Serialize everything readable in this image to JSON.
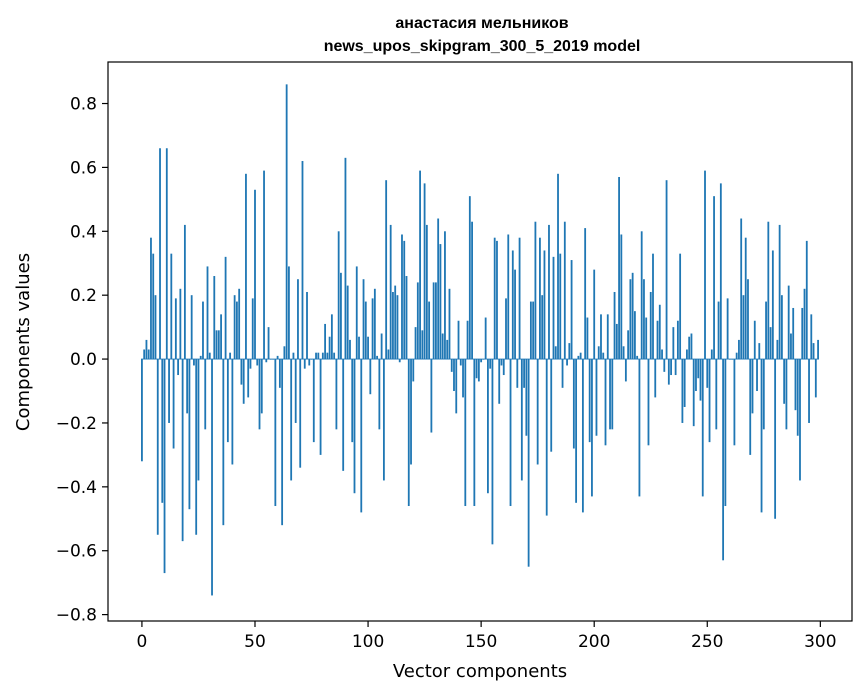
{
  "chart_data": {
    "type": "bar",
    "title": "анастасия мельников",
    "subtitle": "news_upos_skipgram_300_5_2019 model",
    "xlabel": "Vector components",
    "ylabel": "Components values",
    "xlim": [
      -15,
      314
    ],
    "ylim": [
      -0.82,
      0.93
    ],
    "xticks": [
      0,
      50,
      100,
      150,
      200,
      250,
      300
    ],
    "yticks": [
      -0.8,
      -0.6,
      -0.4,
      -0.2,
      0.0,
      0.2,
      0.4,
      0.6,
      0.8
    ],
    "ytick_labels": [
      "−0.8",
      "−0.6",
      "−0.4",
      "−0.2",
      "0.0",
      "0.2",
      "0.4",
      "0.6",
      "0.8"
    ],
    "grid": false,
    "color": "#1f77b4",
    "x_start": 0,
    "values": [
      -0.32,
      0.03,
      0.06,
      0.03,
      0.38,
      0.33,
      0.2,
      -0.55,
      0.66,
      -0.45,
      -0.67,
      0.66,
      -0.2,
      0.33,
      -0.28,
      0.19,
      -0.05,
      0.22,
      -0.57,
      0.42,
      -0.17,
      -0.47,
      0.2,
      -0.02,
      -0.55,
      -0.38,
      0.01,
      0.18,
      -0.22,
      0.29,
      0.02,
      -0.74,
      0.26,
      0.09,
      0.09,
      0.14,
      -0.52,
      0.32,
      -0.26,
      0.02,
      -0.33,
      0.2,
      0.18,
      0.22,
      -0.08,
      -0.14,
      0.58,
      -0.12,
      -0.03,
      0.19,
      0.53,
      -0.02,
      -0.22,
      -0.17,
      0.59,
      -0.01,
      0.1,
      0.0,
      0.0,
      -0.46,
      0.01,
      -0.09,
      -0.52,
      0.04,
      0.86,
      0.29,
      -0.38,
      0.02,
      -0.2,
      0.25,
      -0.34,
      0.62,
      -0.03,
      0.21,
      -0.02,
      0.0,
      -0.26,
      0.02,
      0.02,
      -0.3,
      0.02,
      0.11,
      0.02,
      0.07,
      0.14,
      0.02,
      -0.22,
      0.4,
      0.27,
      -0.35,
      0.63,
      0.23,
      0.06,
      -0.26,
      -0.42,
      0.29,
      0.07,
      -0.48,
      0.25,
      0.18,
      0.07,
      -0.11,
      0.19,
      0.22,
      0.01,
      -0.22,
      0.08,
      -0.38,
      0.56,
      0.03,
      0.42,
      0.21,
      0.23,
      0.2,
      -0.01,
      0.39,
      0.37,
      0.26,
      -0.46,
      -0.33,
      -0.07,
      0.1,
      0.24,
      0.59,
      0.09,
      0.55,
      0.42,
      0.18,
      -0.23,
      0.24,
      0.24,
      0.44,
      0.36,
      0.08,
      0.4,
      0.06,
      0.22,
      -0.04,
      -0.1,
      -0.17,
      0.12,
      -0.02,
      -0.12,
      -0.46,
      0.12,
      0.51,
      0.43,
      -0.46,
      -0.06,
      -0.07,
      -0.01,
      0.0,
      0.13,
      -0.42,
      -0.03,
      -0.58,
      0.38,
      0.37,
      -0.14,
      -0.02,
      -0.05,
      0.19,
      0.39,
      -0.46,
      0.34,
      0.28,
      -0.09,
      0.38,
      -0.38,
      -0.09,
      -0.24,
      -0.65,
      0.18,
      0.18,
      0.43,
      -0.33,
      0.38,
      0.2,
      0.34,
      -0.49,
      0.42,
      -0.29,
      0.32,
      0.04,
      0.58,
      0.33,
      -0.09,
      0.43,
      -0.02,
      0.05,
      0.31,
      -0.28,
      -0.45,
      0.01,
      0.02,
      -0.48,
      0.41,
      0.13,
      -0.26,
      -0.43,
      0.28,
      -0.24,
      0.04,
      0.14,
      0.02,
      -0.27,
      0.14,
      -0.22,
      -0.22,
      0.21,
      0.11,
      0.57,
      0.39,
      0.04,
      -0.07,
      0.09,
      0.25,
      0.27,
      0.15,
      0.01,
      -0.43,
      0.4,
      0.25,
      0.13,
      -0.27,
      0.21,
      0.33,
      -0.12,
      0.12,
      0.17,
      0.03,
      -0.04,
      0.56,
      -0.08,
      -0.05,
      0.1,
      -0.05,
      0.12,
      0.33,
      -0.2,
      -0.15,
      0.03,
      0.07,
      0.08,
      -0.21,
      -0.1,
      -0.06,
      -0.13,
      -0.43,
      0.59,
      -0.09,
      -0.26,
      0.03,
      0.51,
      -0.22,
      0.18,
      0.55,
      -0.63,
      -0.46,
      0.19,
      0.0,
      0.0,
      -0.27,
      0.02,
      0.06,
      0.44,
      0.2,
      0.38,
      0.25,
      -0.3,
      -0.17,
      0.12,
      -0.1,
      0.05,
      -0.48,
      -0.22,
      0.18,
      0.43,
      0.1,
      0.34,
      -0.5,
      0.06,
      0.42,
      0.2,
      -0.14,
      -0.22,
      0.23,
      0.08,
      0.16,
      -0.16,
      -0.24,
      -0.38,
      0.16,
      0.22,
      0.37,
      -0.2,
      0.14,
      0.05,
      -0.12,
      0.06
    ]
  }
}
